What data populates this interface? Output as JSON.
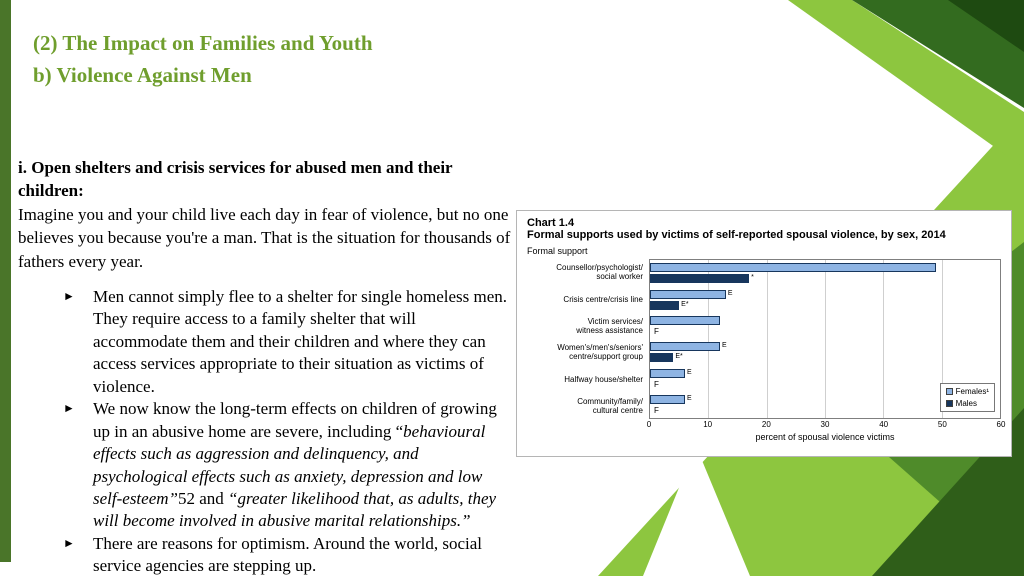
{
  "theme": {
    "title_green": "#6f9e2d",
    "bar_green": "#4a7529",
    "lime": "#8dc63f",
    "green_mid": "#4f8b2a",
    "green_dark": "#2f5e19",
    "corner_dark": "#336b1f",
    "corner_darker": "#1e4a11"
  },
  "slide": {
    "title_line1": "(2) The Impact on Families and Youth",
    "title_line2": "b) Violence Against Men"
  },
  "body": {
    "lead_bold": "i.  Open shelters and crisis services for abused men and their children:",
    "lead_rest": "Imagine you and your child live each day in fear of violence, but no one believes you because you're a man. That is the situation for thousands of fathers every year.",
    "bullet_glyph": "►",
    "bullets": [
      {
        "segments": [
          {
            "text": "Men cannot simply flee to a shelter for single homeless men. They require access to a family shelter that will accommodate them and their children and where they can access services appropriate to their situation as victims of violence.",
            "italic": false
          }
        ]
      },
      {
        "segments": [
          {
            "text": "We now know the long-term effects on children of growing up in an abusive home are severe, including “",
            "italic": false
          },
          {
            "text": "behavioural effects such as aggression and delinquency, and psychological effects such as anxiety, depression and low self-esteem”",
            "italic": true
          },
          {
            "text": "52 and ",
            "italic": false
          },
          {
            "text": "“greater likelihood that, as adults, they will become involved in abusive marital relationships.”",
            "italic": true
          }
        ]
      },
      {
        "segments": [
          {
            "text": "There are reasons for optimism. Around the world, social service agencies are stepping up.",
            "italic": false
          }
        ]
      }
    ]
  },
  "chart_data": {
    "type": "bar",
    "title": "Chart 1.4",
    "subtitle": "Formal supports used by victims of self-reported spousal violence, by sex, 2014",
    "group_label": "Formal support",
    "xlabel": "percent of spousal violence victims",
    "xlim": [
      0,
      60
    ],
    "xticks": [
      0,
      10,
      20,
      30,
      40,
      50,
      60
    ],
    "categories": [
      "Counsellor/psychologist/\nsocial worker",
      "Crisis centre/crisis line",
      "Victim services/\nwitness assistance",
      "Women's/men's/seniors'\ncentre/support group",
      "Halfway house/shelter",
      "Community/family/\ncultural centre"
    ],
    "series": [
      {
        "name": "Females¹",
        "color": "#8eb4e3",
        "values": [
          49,
          13,
          12,
          12,
          6,
          6
        ],
        "notes": [
          "",
          "E",
          "",
          "E",
          "E",
          "E"
        ]
      },
      {
        "name": "Males",
        "color": "#17365d",
        "values": [
          17,
          5,
          null,
          4,
          null,
          null
        ],
        "notes": [
          "*",
          "E*",
          "F",
          "E*",
          "F",
          "F"
        ]
      }
    ],
    "legend_position": "inside-bottom-right",
    "grid": true
  }
}
